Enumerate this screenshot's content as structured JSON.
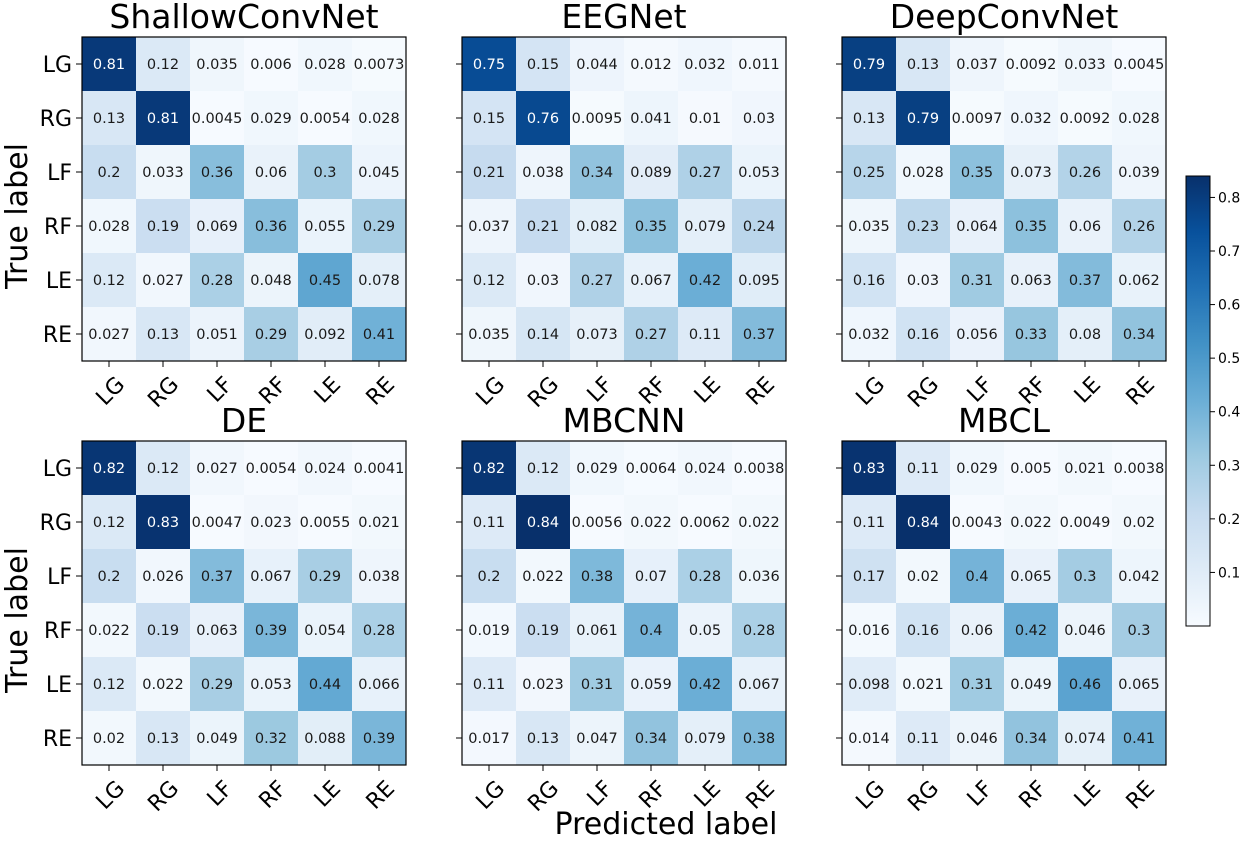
{
  "chart_data": {
    "type": "heatmap",
    "ylabel": "True label",
    "xlabel": "Predicted label",
    "labels": [
      "LG",
      "RG",
      "LF",
      "RF",
      "LE",
      "RE"
    ],
    "colorbar": {
      "min": 0.0,
      "max": 0.84,
      "ticks": [
        "0.1",
        "0.2",
        "0.3",
        "0.4",
        "0.5",
        "0.6",
        "0.7",
        "0.8"
      ],
      "colormap": [
        "#f7fbff",
        "#deebf7",
        "#c6dbef",
        "#9ecae1",
        "#6baed6",
        "#4292c6",
        "#2171b5",
        "#08519c",
        "#08306b"
      ]
    },
    "matrices": [
      {
        "title": "ShallowConvNet",
        "cells": [
          [
            "0.81",
            "0.12",
            "0.035",
            "0.006",
            "0.028",
            "0.0073"
          ],
          [
            "0.13",
            "0.81",
            "0.0045",
            "0.029",
            "0.0054",
            "0.028"
          ],
          [
            "0.2",
            "0.033",
            "0.36",
            "0.06",
            "0.3",
            "0.045"
          ],
          [
            "0.028",
            "0.19",
            "0.069",
            "0.36",
            "0.055",
            "0.29"
          ],
          [
            "0.12",
            "0.027",
            "0.28",
            "0.048",
            "0.45",
            "0.078"
          ],
          [
            "0.027",
            "0.13",
            "0.051",
            "0.29",
            "0.092",
            "0.41"
          ]
        ]
      },
      {
        "title": "EEGNet",
        "cells": [
          [
            "0.75",
            "0.15",
            "0.044",
            "0.012",
            "0.032",
            "0.011"
          ],
          [
            "0.15",
            "0.76",
            "0.0095",
            "0.041",
            "0.01",
            "0.03"
          ],
          [
            "0.21",
            "0.038",
            "0.34",
            "0.089",
            "0.27",
            "0.053"
          ],
          [
            "0.037",
            "0.21",
            "0.082",
            "0.35",
            "0.079",
            "0.24"
          ],
          [
            "0.12",
            "0.03",
            "0.27",
            "0.067",
            "0.42",
            "0.095"
          ],
          [
            "0.035",
            "0.14",
            "0.073",
            "0.27",
            "0.11",
            "0.37"
          ]
        ]
      },
      {
        "title": "DeepConvNet",
        "cells": [
          [
            "0.79",
            "0.13",
            "0.037",
            "0.0092",
            "0.033",
            "0.0045"
          ],
          [
            "0.13",
            "0.79",
            "0.0097",
            "0.032",
            "0.0092",
            "0.028"
          ],
          [
            "0.25",
            "0.028",
            "0.35",
            "0.073",
            "0.26",
            "0.039"
          ],
          [
            "0.035",
            "0.23",
            "0.064",
            "0.35",
            "0.06",
            "0.26"
          ],
          [
            "0.16",
            "0.03",
            "0.31",
            "0.063",
            "0.37",
            "0.062"
          ],
          [
            "0.032",
            "0.16",
            "0.056",
            "0.33",
            "0.08",
            "0.34"
          ]
        ]
      },
      {
        "title": "DE",
        "cells": [
          [
            "0.82",
            "0.12",
            "0.027",
            "0.0054",
            "0.024",
            "0.0041"
          ],
          [
            "0.12",
            "0.83",
            "0.0047",
            "0.023",
            "0.0055",
            "0.021"
          ],
          [
            "0.2",
            "0.026",
            "0.37",
            "0.067",
            "0.29",
            "0.038"
          ],
          [
            "0.022",
            "0.19",
            "0.063",
            "0.39",
            "0.054",
            "0.28"
          ],
          [
            "0.12",
            "0.022",
            "0.29",
            "0.053",
            "0.44",
            "0.066"
          ],
          [
            "0.02",
            "0.13",
            "0.049",
            "0.32",
            "0.088",
            "0.39"
          ]
        ]
      },
      {
        "title": "MBCNN",
        "cells": [
          [
            "0.82",
            "0.12",
            "0.029",
            "0.0064",
            "0.024",
            "0.0038"
          ],
          [
            "0.11",
            "0.84",
            "0.0056",
            "0.022",
            "0.0062",
            "0.022"
          ],
          [
            "0.2",
            "0.022",
            "0.38",
            "0.07",
            "0.28",
            "0.036"
          ],
          [
            "0.019",
            "0.19",
            "0.061",
            "0.4",
            "0.05",
            "0.28"
          ],
          [
            "0.11",
            "0.023",
            "0.31",
            "0.059",
            "0.42",
            "0.067"
          ],
          [
            "0.017",
            "0.13",
            "0.047",
            "0.34",
            "0.079",
            "0.38"
          ]
        ]
      },
      {
        "title": "MBCL",
        "cells": [
          [
            "0.83",
            "0.11",
            "0.029",
            "0.005",
            "0.021",
            "0.0038"
          ],
          [
            "0.11",
            "0.84",
            "0.0043",
            "0.022",
            "0.0049",
            "0.02"
          ],
          [
            "0.17",
            "0.02",
            "0.4",
            "0.065",
            "0.3",
            "0.042"
          ],
          [
            "0.016",
            "0.16",
            "0.06",
            "0.42",
            "0.046",
            "0.3"
          ],
          [
            "0.098",
            "0.021",
            "0.31",
            "0.049",
            "0.46",
            "0.065"
          ],
          [
            "0.014",
            "0.11",
            "0.046",
            "0.34",
            "0.074",
            "0.41"
          ]
        ]
      }
    ]
  }
}
